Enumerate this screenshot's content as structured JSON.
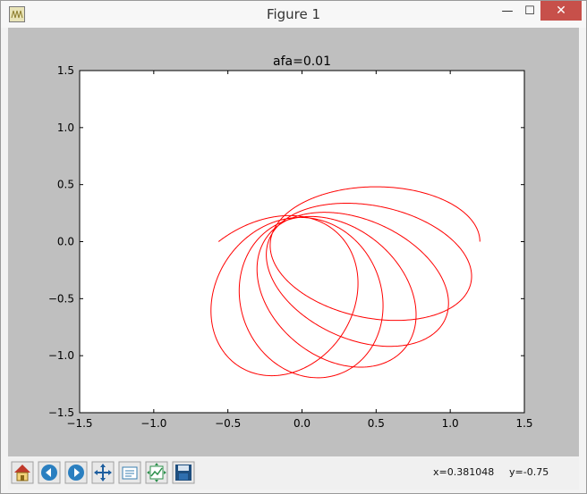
{
  "window": {
    "title": "Figure 1"
  },
  "controls": {
    "minimize_glyph": "—",
    "maximize_glyph": "☐",
    "close_glyph": "✕"
  },
  "toolbar": {
    "buttons": [
      {
        "icon": "home-icon"
      },
      {
        "icon": "back-arrow-icon"
      },
      {
        "icon": "forward-arrow-icon"
      },
      {
        "icon": "pan-move-icon"
      },
      {
        "icon": "zoom-rect-icon"
      },
      {
        "icon": "subplots-config-icon"
      },
      {
        "icon": "save-disk-icon"
      }
    ],
    "coord_x": "x=0.381048",
    "coord_y": "y=-0.75"
  },
  "colors": {
    "line": "#ff0000",
    "figure_bg": "#bfbfbf",
    "axes_bg": "#ffffff"
  },
  "chart_data": {
    "type": "line",
    "title": "afa=0.01",
    "xlabel": "",
    "ylabel": "",
    "xlim": [
      -1.5,
      1.5
    ],
    "ylim": [
      -1.5,
      1.5
    ],
    "xticks": [
      "−1.5",
      "−1.0",
      "−0.5",
      "0.0",
      "0.5",
      "1.0",
      "1.5"
    ],
    "yticks": [
      "1.5",
      "1.0",
      "0.5",
      "0.0",
      "−0.5",
      "−1.0",
      "−1.5"
    ],
    "xtick_values": [
      -1.5,
      -1.0,
      -0.5,
      0.0,
      0.5,
      1.0,
      1.5
    ],
    "ytick_values": [
      1.5,
      1.0,
      0.5,
      0.0,
      -0.5,
      -1.0,
      -1.5
    ],
    "grid": false,
    "series": [
      {
        "description_free": true,
        "orbit": {
          "a": 0.71,
          "e": 0.7,
          "precession_per_orbit_deg": -22,
          "orbits": 5.5,
          "start_x": 1.2,
          "start_y": 0.0
        }
      }
    ]
  }
}
